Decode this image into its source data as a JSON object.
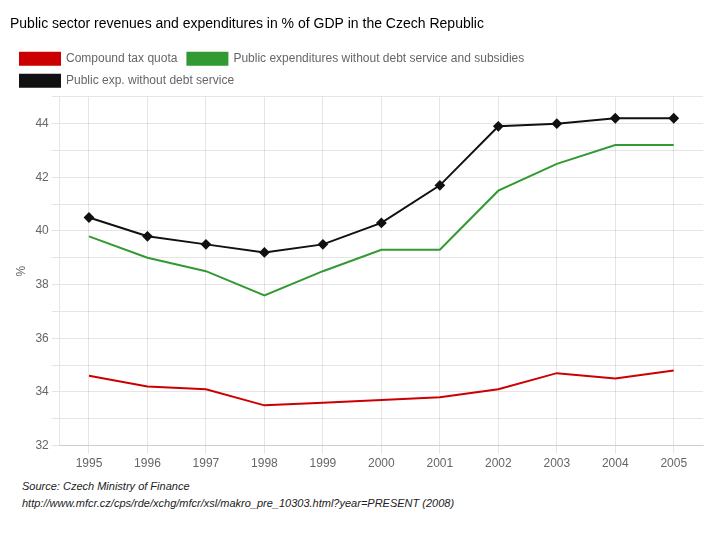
{
  "chart_data": {
    "type": "line",
    "title": "Public sector revenues and expenditures in % of GDP in the Czech Republic",
    "ylabel": "%",
    "x": [
      1995,
      1996,
      1997,
      1998,
      1999,
      2000,
      2001,
      2002,
      2003,
      2004,
      2005
    ],
    "series": [
      {
        "name": "Compound tax quota",
        "color": "#cc0000",
        "marker": "none",
        "line_style": "solid",
        "values": [
          34.6,
          34.2,
          34.1,
          33.5,
          33.6,
          33.7,
          33.8,
          34.1,
          34.7,
          34.5,
          34.8
        ]
      },
      {
        "name": "Public expenditures without debt service and subsidies",
        "color": "#339933",
        "marker": "none",
        "line_style": "solid",
        "values": [
          39.8,
          39.0,
          38.5,
          37.6,
          38.5,
          39.3,
          39.3,
          41.5,
          42.5,
          43.2,
          43.2
        ]
      },
      {
        "name": "Public exp. without debt service",
        "color": "#111111",
        "marker": "diamond",
        "line_style": "solid",
        "values": [
          40.5,
          39.8,
          39.5,
          39.2,
          39.5,
          40.3,
          41.7,
          43.9,
          44.0,
          44.2,
          44.2
        ]
      }
    ],
    "xlim": [
      1994.5,
      2005.5
    ],
    "xticks": [
      1995,
      1996,
      1997,
      1998,
      1999,
      2000,
      2001,
      2002,
      2003,
      2004,
      2005
    ],
    "ylim": [
      32,
      45
    ],
    "yticks": [
      32,
      {
        "value": 33,
        "label": null
      },
      34,
      {
        "value": 35,
        "label": null
      },
      36,
      {
        "value": 37,
        "label": null
      },
      38,
      {
        "value": 39,
        "label": null
      },
      40,
      {
        "value": 41,
        "label": null
      },
      42,
      {
        "value": 43,
        "label": null
      },
      44,
      {
        "value": 45,
        "label": null
      }
    ],
    "grid": true,
    "legend": "upper left",
    "annotations": [
      "Source: Czech Ministry of Finance",
      "http://www.mfcr.cz/cps/rde/xchg/mfcr/xsl/makro_pre_10303.html?year=PRESENT (2008)"
    ]
  }
}
